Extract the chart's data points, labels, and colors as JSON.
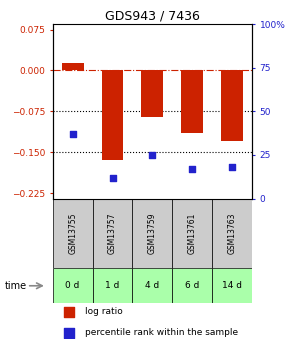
{
  "title": "GDS943 / 7436",
  "samples": [
    "GSM13755",
    "GSM13757",
    "GSM13759",
    "GSM13761",
    "GSM13763"
  ],
  "time_labels": [
    "0 d",
    "1 d",
    "4 d",
    "6 d",
    "14 d"
  ],
  "log_ratios": [
    0.013,
    -0.165,
    -0.085,
    -0.115,
    -0.13
  ],
  "percentile_ranks": [
    37,
    12,
    25,
    17,
    18
  ],
  "bar_color": "#cc2200",
  "dot_color": "#2222cc",
  "ylim_left": [
    -0.235,
    0.085
  ],
  "ylim_right": [
    0,
    100
  ],
  "yticks_left": [
    0.075,
    0.0,
    -0.075,
    -0.15,
    -0.225
  ],
  "yticks_right": [
    100,
    75,
    50,
    25,
    0
  ],
  "yline_0": 0.0,
  "yline_1": -0.075,
  "yline_2": -0.15,
  "bar_width": 0.55,
  "sample_bg_color": "#cccccc",
  "time_bg_color": "#aaffaa",
  "time_arrow_color": "#888888",
  "legend_bar_label": "log ratio",
  "legend_dot_label": "percentile rank within the sample",
  "background_color": "#ffffff"
}
